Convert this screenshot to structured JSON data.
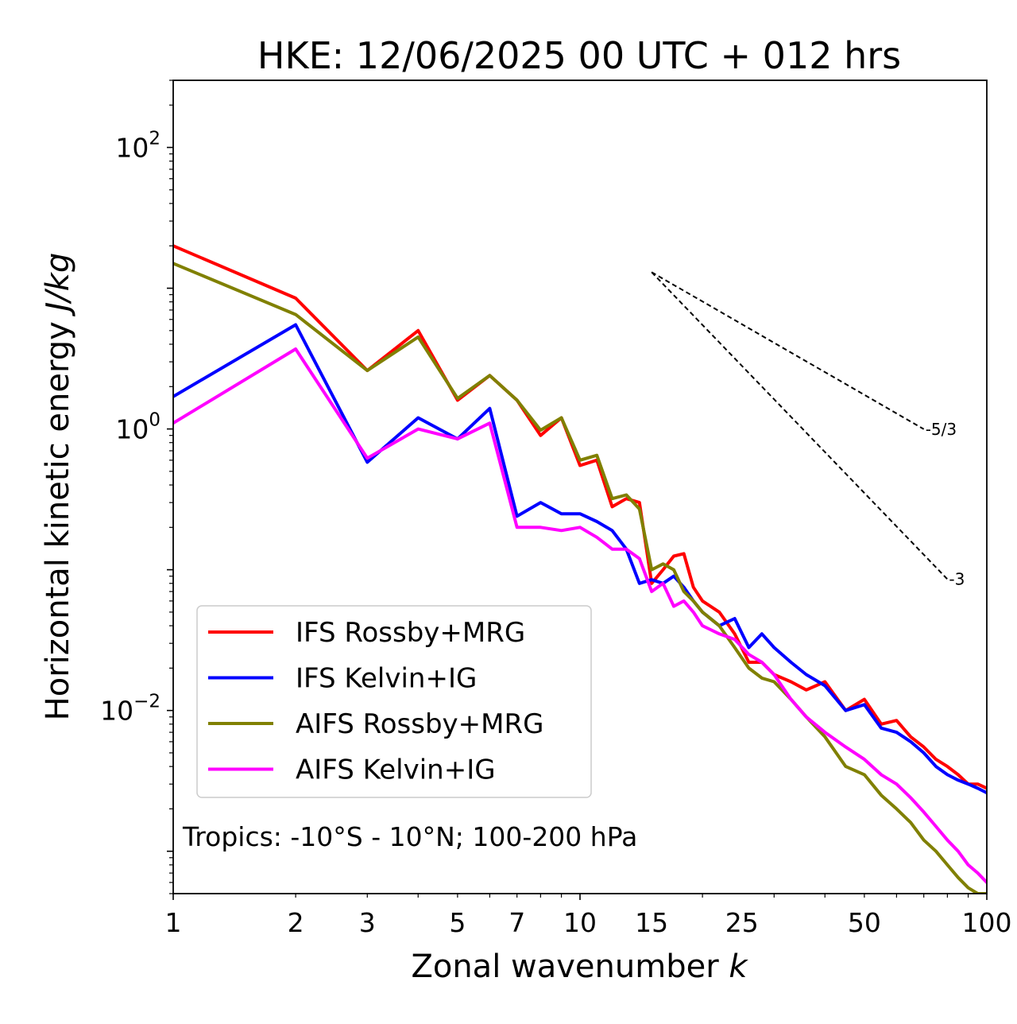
{
  "chart_data": {
    "type": "line",
    "title": "HKE: 12/06/2025 00 UTC + 012 hrs",
    "xlabel": "Zonal wavenumber",
    "xlabel_symbol": "k",
    "ylabel": "Horizontal kinetic energy",
    "ylabel_units": "J/kg",
    "xscale": "log",
    "yscale": "log",
    "xlim": [
      1,
      100
    ],
    "ylim": [
      0.0005,
      300
    ],
    "x_ticks": [
      1,
      2,
      3,
      5,
      7,
      10,
      15,
      25,
      50,
      100
    ],
    "x_tick_labels": [
      "1",
      "2",
      "3",
      "5",
      "7",
      "10",
      "15",
      "25",
      "50",
      "100"
    ],
    "y_ticks": [
      0.01,
      1,
      100
    ],
    "y_tick_labels": [
      {
        "base": "10",
        "exp": "−2"
      },
      {
        "base": "10",
        "exp": "0"
      },
      {
        "base": "10",
        "exp": "2"
      }
    ],
    "grid": false,
    "legend_position": "lower-left",
    "annotation": "Tropics: -10°S - 10°N; 100-200 hPa",
    "reference_slopes": [
      {
        "label": "-5/3",
        "slope": -1.6667,
        "x": [
          15,
          70
        ],
        "y_start": 13
      },
      {
        "label": "-3",
        "slope": -3,
        "x": [
          15,
          80
        ],
        "y_start": 13
      }
    ],
    "series": [
      {
        "name": "IFS Rossby+MRG",
        "color": "#ff0000",
        "x": [
          1,
          2,
          3,
          4,
          5,
          6,
          7,
          8,
          9,
          10,
          11,
          12,
          13,
          14,
          15,
          16,
          17,
          18,
          19,
          20,
          22,
          24,
          26,
          28,
          30,
          33,
          36,
          40,
          45,
          50,
          55,
          60,
          65,
          70,
          75,
          80,
          85,
          90,
          95,
          100
        ],
        "y": [
          20,
          8.5,
          2.6,
          5,
          1.6,
          2.4,
          1.6,
          0.9,
          1.2,
          0.55,
          0.6,
          0.28,
          0.32,
          0.3,
          0.08,
          0.1,
          0.125,
          0.13,
          0.075,
          0.06,
          0.05,
          0.035,
          0.022,
          0.022,
          0.018,
          0.016,
          0.014,
          0.016,
          0.01,
          0.012,
          0.008,
          0.0085,
          0.0065,
          0.0055,
          0.0045,
          0.004,
          0.0035,
          0.003,
          0.003,
          0.0028
        ]
      },
      {
        "name": "IFS Kelvin+IG",
        "color": "#0000ff",
        "x": [
          1,
          2,
          3,
          4,
          5,
          6,
          7,
          8,
          9,
          10,
          11,
          12,
          13,
          14,
          15,
          16,
          17,
          18,
          19,
          20,
          22,
          24,
          26,
          28,
          30,
          33,
          36,
          40,
          45,
          50,
          55,
          60,
          65,
          70,
          75,
          80,
          85,
          90,
          95,
          100
        ],
        "y": [
          1.7,
          5.5,
          0.58,
          1.2,
          0.85,
          1.4,
          0.24,
          0.3,
          0.25,
          0.25,
          0.22,
          0.19,
          0.14,
          0.08,
          0.085,
          0.08,
          0.09,
          0.075,
          0.06,
          0.05,
          0.04,
          0.045,
          0.028,
          0.035,
          0.028,
          0.022,
          0.018,
          0.015,
          0.01,
          0.011,
          0.0075,
          0.007,
          0.006,
          0.005,
          0.004,
          0.0035,
          0.0032,
          0.003,
          0.0028,
          0.0026
        ]
      },
      {
        "name": "AIFS Rossby+MRG",
        "color": "#808000",
        "x": [
          1,
          2,
          3,
          4,
          5,
          6,
          7,
          8,
          9,
          10,
          11,
          12,
          13,
          14,
          15,
          16,
          17,
          18,
          19,
          20,
          22,
          24,
          26,
          28,
          30,
          33,
          36,
          40,
          45,
          50,
          55,
          60,
          65,
          70,
          75,
          80,
          85,
          90,
          95,
          100
        ],
        "y": [
          15,
          6.5,
          2.6,
          4.5,
          1.65,
          2.4,
          1.6,
          0.98,
          1.2,
          0.6,
          0.65,
          0.32,
          0.34,
          0.27,
          0.1,
          0.11,
          0.1,
          0.07,
          0.06,
          0.05,
          0.04,
          0.028,
          0.02,
          0.017,
          0.016,
          0.012,
          0.009,
          0.0065,
          0.004,
          0.0035,
          0.0025,
          0.002,
          0.0016,
          0.0012,
          0.001,
          0.0008,
          0.00065,
          0.00055,
          0.0005,
          0.0005
        ]
      },
      {
        "name": "AIFS Kelvin+IG",
        "color": "#ff00ff",
        "x": [
          1,
          2,
          3,
          4,
          5,
          6,
          7,
          8,
          9,
          10,
          11,
          12,
          13,
          14,
          15,
          16,
          17,
          18,
          19,
          20,
          22,
          24,
          26,
          28,
          30,
          33,
          36,
          40,
          45,
          50,
          55,
          60,
          65,
          70,
          75,
          80,
          85,
          90,
          95,
          100
        ],
        "y": [
          1.1,
          3.7,
          0.62,
          1.0,
          0.85,
          1.1,
          0.2,
          0.2,
          0.19,
          0.2,
          0.17,
          0.14,
          0.14,
          0.12,
          0.07,
          0.08,
          0.055,
          0.06,
          0.05,
          0.04,
          0.035,
          0.032,
          0.025,
          0.022,
          0.018,
          0.012,
          0.009,
          0.007,
          0.0055,
          0.0045,
          0.0035,
          0.003,
          0.0024,
          0.0019,
          0.0015,
          0.0012,
          0.001,
          0.0008,
          0.0007,
          0.0006
        ]
      }
    ]
  }
}
